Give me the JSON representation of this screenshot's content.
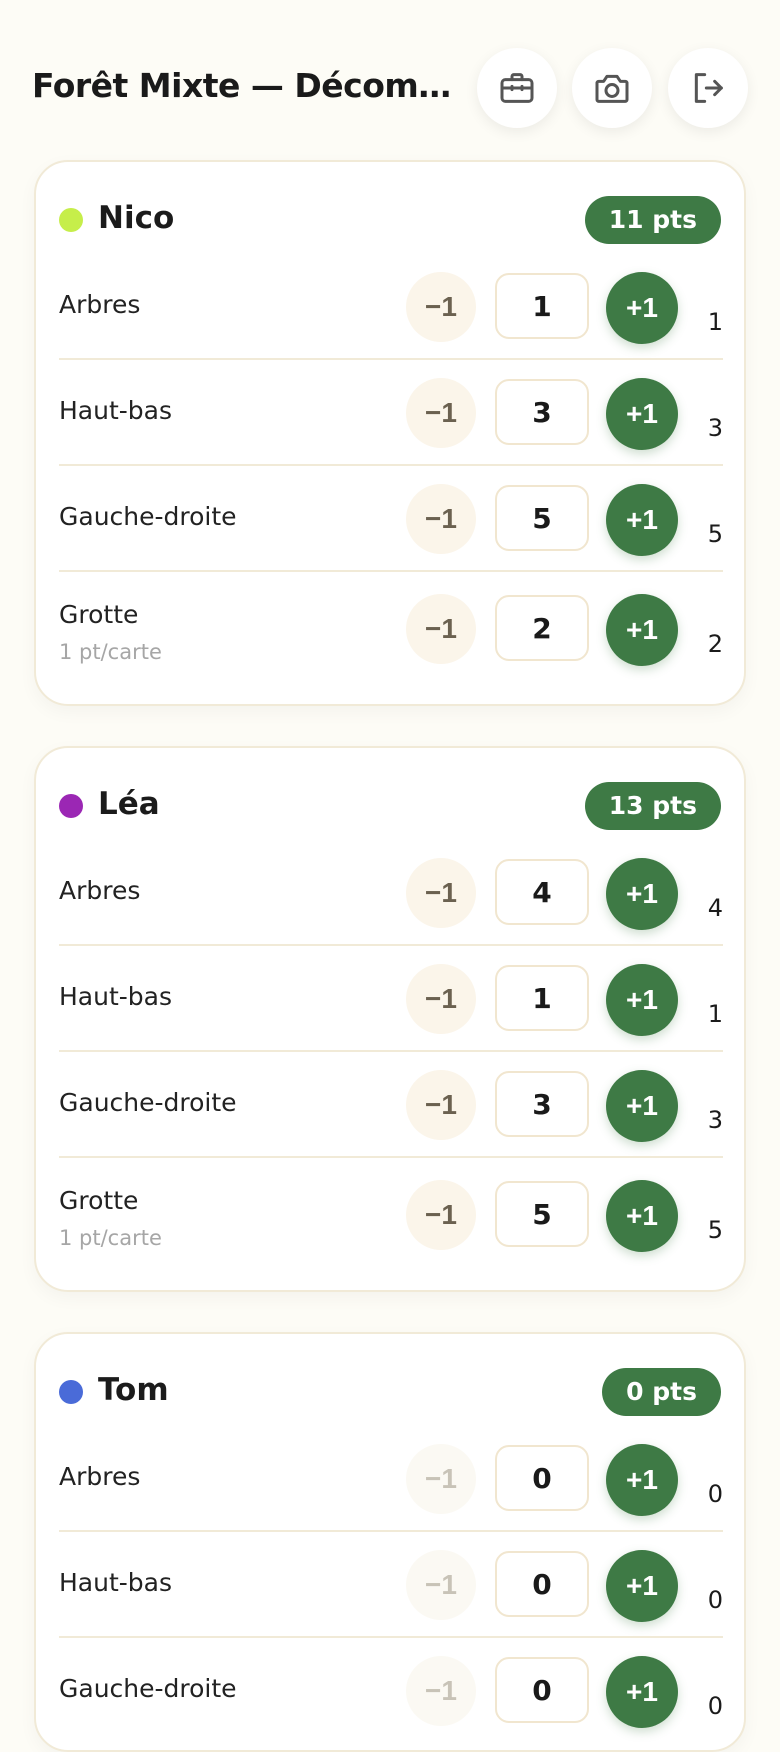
{
  "header": {
    "title": "Forêt Mixte — Décompte des points",
    "icons": [
      "toolbox-icon",
      "camera-icon",
      "logout-icon"
    ]
  },
  "colors": {
    "primary": "#3e7a45",
    "background": "#fdfcf6",
    "nico": "#c6ee4a",
    "lea": "#9b27b4",
    "tom": "#4a6bd8"
  },
  "players": [
    {
      "name": "Nico",
      "points": "11 pts",
      "rows": [
        {
          "label": "Arbres",
          "minus": "−1",
          "value": "1",
          "plus": "+1",
          "score": "1"
        },
        {
          "label": "Haut-bas",
          "minus": "−1",
          "value": "3",
          "plus": "+1",
          "score": "3"
        },
        {
          "label": "Gauche-droite",
          "minus": "−1",
          "value": "5",
          "plus": "+1",
          "score": "5"
        },
        {
          "label": "Grotte",
          "sub": "1 pt/carte",
          "minus": "−1",
          "value": "2",
          "plus": "+1",
          "score": "2"
        }
      ]
    },
    {
      "name": "Léa",
      "points": "13 pts",
      "rows": [
        {
          "label": "Arbres",
          "minus": "−1",
          "value": "4",
          "plus": "+1",
          "score": "4"
        },
        {
          "label": "Haut-bas",
          "minus": "−1",
          "value": "1",
          "plus": "+1",
          "score": "1"
        },
        {
          "label": "Gauche-droite",
          "minus": "−1",
          "value": "3",
          "plus": "+1",
          "score": "3"
        },
        {
          "label": "Grotte",
          "sub": "1 pt/carte",
          "minus": "−1",
          "value": "5",
          "plus": "+1",
          "score": "5"
        }
      ]
    },
    {
      "name": "Tom",
      "points": "0 pts",
      "rows": [
        {
          "label": "Arbres",
          "minus": "−1",
          "value": "0",
          "plus": "+1",
          "score": "0"
        },
        {
          "label": "Haut-bas",
          "minus": "−1",
          "value": "0",
          "plus": "+1",
          "score": "0"
        },
        {
          "label": "Gauche-droite",
          "minus": "−1",
          "value": "0",
          "plus": "+1",
          "score": "0"
        }
      ]
    }
  ]
}
